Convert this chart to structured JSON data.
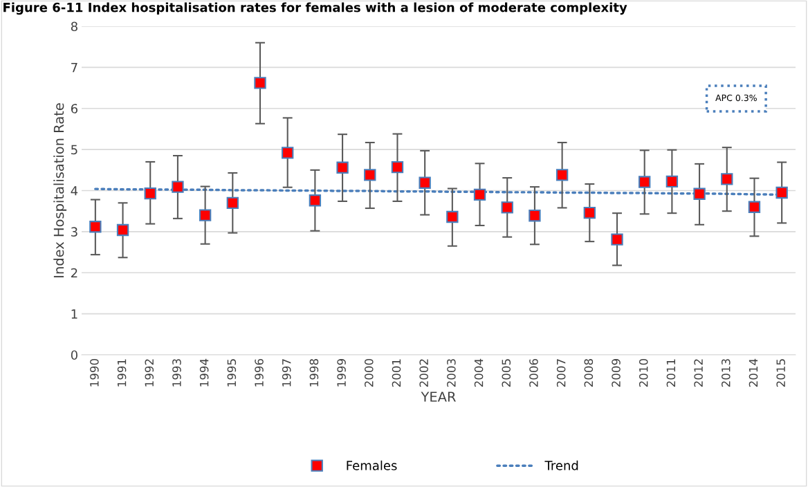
{
  "chart_data": {
    "type": "scatter",
    "title": "Figure 6-11 Index hospitalisation rates for females with a lesion of moderate complexity",
    "xlabel": "YEAR",
    "ylabel": "Index Hospitalisation Rate",
    "categories": [
      "1990",
      "1991",
      "1992",
      "1993",
      "1994",
      "1995",
      "1996",
      "1997",
      "1998",
      "1999",
      "2000",
      "2001",
      "2002",
      "2003",
      "2004",
      "2005",
      "2006",
      "2007",
      "2008",
      "2009",
      "2010",
      "2011",
      "2012",
      "2013",
      "2014",
      "2015"
    ],
    "series": [
      {
        "name": "Females",
        "color": "#ff0000",
        "marker": "square",
        "values": [
          3.12,
          3.04,
          3.93,
          4.09,
          3.4,
          3.7,
          6.62,
          4.92,
          3.76,
          4.56,
          4.38,
          4.57,
          4.19,
          3.36,
          3.9,
          3.59,
          3.39,
          4.38,
          3.46,
          2.81,
          4.21,
          4.22,
          3.92,
          4.28,
          3.6,
          3.95
        ],
        "errors": [
          [
            2.44,
            3.78
          ],
          [
            2.37,
            3.7
          ],
          [
            3.19,
            4.7
          ],
          [
            3.32,
            4.85
          ],
          [
            2.7,
            4.1
          ],
          [
            2.97,
            4.43
          ],
          [
            5.63,
            7.6
          ],
          [
            4.08,
            5.77
          ],
          [
            3.02,
            4.5
          ],
          [
            3.74,
            5.37
          ],
          [
            3.57,
            5.17
          ],
          [
            3.74,
            5.38
          ],
          [
            3.41,
            4.97
          ],
          [
            2.65,
            4.05
          ],
          [
            3.15,
            4.66
          ],
          [
            2.87,
            4.31
          ],
          [
            2.69,
            4.09
          ],
          [
            3.58,
            5.17
          ],
          [
            2.76,
            4.16
          ],
          [
            2.18,
            3.45
          ],
          [
            3.43,
            4.98
          ],
          [
            3.45,
            4.99
          ],
          [
            3.17,
            4.65
          ],
          [
            3.5,
            5.05
          ],
          [
            2.89,
            4.3
          ],
          [
            3.21,
            4.69
          ]
        ]
      },
      {
        "name": "Trend",
        "type": "line",
        "color": "#4a7ebb",
        "line_style": "dotted",
        "values": [
          4.04,
          4.03,
          4.03,
          4.02,
          4.02,
          4.01,
          4.01,
          4.0,
          4.0,
          3.99,
          3.99,
          3.98,
          3.98,
          3.97,
          3.97,
          3.96,
          3.96,
          3.95,
          3.95,
          3.94,
          3.94,
          3.93,
          3.93,
          3.92,
          3.91,
          3.9
        ]
      }
    ],
    "annotations": [
      "APC 0.3%"
    ],
    "ylim": [
      0,
      8
    ],
    "yticks": [
      0,
      1,
      2,
      3,
      4,
      5,
      6,
      7,
      8
    ],
    "grid": "y",
    "legend": "bottom"
  }
}
